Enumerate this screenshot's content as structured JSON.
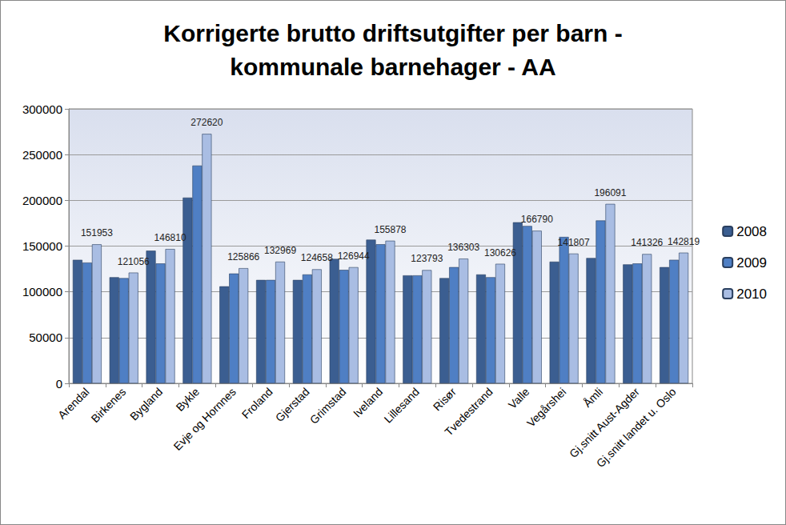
{
  "chart_data": {
    "type": "bar",
    "title": "Korrigerte brutto driftsutgifter per barn -\nkommunale barnehager - AA",
    "categories": [
      "Arendal",
      "Birkenes",
      "Bygland",
      "Bykle",
      "Evje og Hornnes",
      "Froland",
      "Gjerstad",
      "Grimstad",
      "Iveland",
      "Lillesand",
      "Risør",
      "Tvedestrand",
      "Valle",
      "Vegårshei",
      "Åmli",
      "Gj.snitt Aust-Agder",
      "Gj.snitt landet u. Oslo"
    ],
    "series": [
      {
        "name": "2008",
        "color": "#3b5e91",
        "values": [
          135000,
          116000,
          145000,
          203000,
          106000,
          113000,
          113000,
          136000,
          157000,
          118000,
          115000,
          119000,
          176000,
          133000,
          137000,
          130000,
          127000
        ]
      },
      {
        "name": "2009",
        "color": "#4f7fc4",
        "values": [
          132000,
          115000,
          131000,
          238000,
          120000,
          113000,
          119000,
          124000,
          152000,
          118000,
          127000,
          116000,
          172000,
          160000,
          178000,
          131000,
          135000
        ]
      },
      {
        "name": "2010",
        "color": "#a9bde3",
        "data_labels": true,
        "values": [
          151953,
          121056,
          146810,
          272620,
          125866,
          132969,
          124658,
          126944,
          155878,
          123793,
          136303,
          130626,
          166790,
          141807,
          196091,
          141326,
          142819
        ]
      }
    ],
    "ylim": [
      0,
      300000
    ],
    "yticks": [
      0,
      50000,
      100000,
      150000,
      200000,
      250000,
      300000
    ],
    "grid": true,
    "legend": "right"
  }
}
